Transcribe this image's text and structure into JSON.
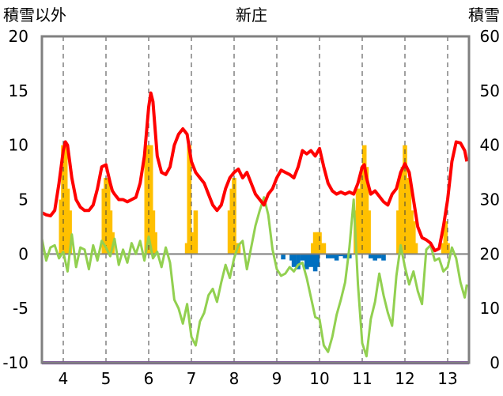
{
  "chart_data": {
    "type": "line",
    "title": "新庄",
    "ylabel_left": "積雪以外",
    "ylabel_right": "積雪",
    "ylim_left": [
      -10,
      20
    ],
    "ylim_right": [
      0,
      60
    ],
    "yticks_left": [
      "20",
      "15",
      "10",
      "5",
      "0",
      "-5",
      "-10"
    ],
    "yticks_right": [
      "60",
      "50",
      "40",
      "30",
      "20",
      "10",
      "0"
    ],
    "xticks": [
      "4",
      "5",
      "6",
      "7",
      "8",
      "9",
      "10",
      "11",
      "12",
      "13"
    ],
    "xlim": [
      3.5,
      13.5
    ],
    "grid": "vertical-dashed",
    "colors": {
      "snow_depth": "#ff0000",
      "temperature": "#92d050",
      "snowfall_positive": "#ffc000",
      "snowfall_negative": "#0070c0",
      "baseline": "#7030a0",
      "zero_line": "#808080",
      "frame": "#808080"
    },
    "series": [
      {
        "axis": "right",
        "kind": "line",
        "x": [
          3.5,
          3.6,
          3.7,
          3.8,
          3.9,
          4.0,
          4.05,
          4.1,
          4.2,
          4.3,
          4.4,
          4.5,
          4.6,
          4.7,
          4.8,
          4.9,
          5.0,
          5.1,
          5.15,
          5.2,
          5.3,
          5.4,
          5.5,
          5.6,
          5.7,
          5.8,
          5.9,
          6.0,
          6.05,
          6.1,
          6.2,
          6.3,
          6.4,
          6.5,
          6.6,
          6.7,
          6.8,
          6.9,
          7.0,
          7.1,
          7.2,
          7.3,
          7.4,
          7.5,
          7.6,
          7.7,
          7.8,
          7.9,
          8.0,
          8.1,
          8.2,
          8.3,
          8.4,
          8.5,
          8.6,
          8.7,
          8.8,
          8.9,
          9.0,
          9.1,
          9.2,
          9.3,
          9.4,
          9.5,
          9.6,
          9.7,
          9.8,
          9.9,
          10.0,
          10.1,
          10.2,
          10.3,
          10.4,
          10.5,
          10.6,
          10.7,
          10.8,
          10.9,
          11.0,
          11.05,
          11.1,
          11.2,
          11.3,
          11.4,
          11.5,
          11.6,
          11.7,
          11.8,
          11.9,
          12.0,
          12.1,
          12.2,
          12.3,
          12.4,
          12.5,
          12.6,
          12.7,
          12.8,
          12.9,
          13.0,
          13.1,
          13.2,
          13.3,
          13.4,
          13.45
        ],
        "y": [
          27.6,
          27.2,
          27.0,
          28.0,
          33.0,
          39.0,
          40.6,
          40.0,
          34.0,
          30.0,
          28.6,
          28.0,
          28.0,
          29.0,
          32.0,
          36.0,
          36.4,
          33.0,
          31.6,
          31.0,
          30.0,
          30.0,
          29.6,
          30.0,
          30.4,
          33.0,
          38.0,
          47.0,
          49.6,
          48.0,
          38.0,
          35.0,
          34.6,
          36.0,
          40.0,
          42.0,
          43.0,
          42.0,
          37.0,
          35.0,
          34.0,
          33.0,
          31.0,
          29.0,
          28.0,
          29.0,
          32.0,
          34.0,
          35.0,
          35.6,
          34.0,
          35.0,
          33.0,
          31.0,
          30.0,
          29.0,
          31.0,
          32.0,
          34.0,
          35.4,
          35.0,
          34.6,
          34.0,
          36.0,
          39.0,
          38.4,
          39.0,
          38.0,
          39.4,
          36.0,
          33.0,
          31.6,
          31.0,
          31.4,
          31.0,
          31.4,
          31.0,
          33.0,
          36.0,
          36.4,
          34.0,
          31.0,
          31.6,
          30.6,
          29.6,
          29.0,
          31.0,
          32.0,
          35.0,
          36.6,
          35.0,
          30.0,
          25.0,
          23.0,
          22.6,
          22.0,
          20.6,
          21.0,
          25.0,
          30.0,
          37.0,
          40.6,
          40.4,
          39.0,
          37.0
        ]
      },
      {
        "axis": "left",
        "kind": "line",
        "x": [
          3.5,
          3.6,
          3.7,
          3.8,
          3.9,
          4.0,
          4.1,
          4.2,
          4.3,
          4.4,
          4.5,
          4.6,
          4.7,
          4.8,
          4.9,
          5.0,
          5.1,
          5.2,
          5.3,
          5.4,
          5.5,
          5.6,
          5.7,
          5.8,
          5.9,
          6.0,
          6.1,
          6.2,
          6.3,
          6.4,
          6.5,
          6.6,
          6.7,
          6.8,
          6.9,
          7.0,
          7.1,
          7.2,
          7.3,
          7.4,
          7.5,
          7.6,
          7.7,
          7.8,
          7.9,
          8.0,
          8.1,
          8.2,
          8.3,
          8.4,
          8.5,
          8.6,
          8.7,
          8.8,
          8.9,
          9.0,
          9.1,
          9.2,
          9.3,
          9.4,
          9.5,
          9.6,
          9.7,
          9.8,
          9.9,
          10.0,
          10.1,
          10.2,
          10.3,
          10.4,
          10.5,
          10.6,
          10.7,
          10.8,
          10.9,
          11.0,
          11.1,
          11.2,
          11.3,
          11.4,
          11.5,
          11.6,
          11.7,
          11.8,
          11.9,
          12.0,
          12.1,
          12.2,
          12.3,
          12.4,
          12.5,
          12.6,
          12.7,
          12.8,
          12.9,
          13.0,
          13.1,
          13.2,
          13.3,
          13.4,
          13.45
        ],
        "y": [
          1.4,
          -0.6,
          0.6,
          0.8,
          -0.4,
          0.2,
          -1.6,
          1.8,
          -1.2,
          0.6,
          0.4,
          -1.4,
          0.8,
          -0.6,
          1.2,
          0.6,
          -0.2,
          1.4,
          -1.0,
          0.4,
          -0.8,
          1.0,
          0.0,
          1.2,
          -0.6,
          1.6,
          -0.4,
          0.2,
          -1.2,
          0.6,
          -0.8,
          -4.2,
          -5.0,
          -6.4,
          -4.6,
          -7.6,
          -8.4,
          -6.2,
          -5.4,
          -3.8,
          -3.2,
          -4.4,
          -2.6,
          -1.0,
          -2.2,
          -0.4,
          0.8,
          1.2,
          -1.4,
          0.6,
          2.6,
          4.0,
          5.2,
          3.6,
          0.4,
          -1.4,
          -2.0,
          -1.8,
          -1.2,
          -1.6,
          -1.0,
          -0.8,
          -2.2,
          -4.0,
          -5.8,
          -6.0,
          -8.4,
          -9.0,
          -7.6,
          -5.6,
          -4.2,
          -2.6,
          0.6,
          5.0,
          -2.8,
          -8.2,
          -9.4,
          -6.0,
          -4.4,
          -1.8,
          -3.8,
          -5.4,
          -6.6,
          -2.0,
          0.8,
          -1.2,
          -2.8,
          -1.6,
          -3.4,
          -4.6,
          0.4,
          0.8,
          -0.6,
          -0.4,
          -1.6,
          -1.2,
          0.6,
          -0.4,
          -2.6,
          -4.0,
          -2.8
        ]
      },
      {
        "axis": "left",
        "kind": "bar",
        "x": [
          3.95,
          4.0,
          4.05,
          4.1,
          4.15,
          4.95,
          5.0,
          5.05,
          5.1,
          5.15,
          5.95,
          6.0,
          6.05,
          6.1,
          6.15,
          6.9,
          6.95,
          7.0,
          7.05,
          7.1,
          7.9,
          7.95,
          8.0,
          8.05,
          8.1,
          9.85,
          9.9,
          9.95,
          10.0,
          10.05,
          10.1,
          10.85,
          10.9,
          10.95,
          11.0,
          11.05,
          11.1,
          11.15,
          11.85,
          11.9,
          11.95,
          12.0,
          12.05,
          12.1,
          12.15,
          12.2,
          12.25,
          12.9,
          12.95,
          13.0
        ],
        "y": [
          5.0,
          10.0,
          10.0,
          6.0,
          4.0,
          6.0,
          7.0,
          7.0,
          4.0,
          2.0,
          10.0,
          10.0,
          10.0,
          4.0,
          2.0,
          1.0,
          10.0,
          2.0,
          1.0,
          4.0,
          4.0,
          6.0,
          7.0,
          1.0,
          1.0,
          1.0,
          2.0,
          2.0,
          2.0,
          1.0,
          1.0,
          4.0,
          6.0,
          6.0,
          8.0,
          10.0,
          8.0,
          4.0,
          4.0,
          7.0,
          8.0,
          10.0,
          7.0,
          7.0,
          4.0,
          3.0,
          1.0,
          1.0,
          3.0,
          1.0
        ]
      },
      {
        "axis": "left",
        "kind": "bar",
        "x": [
          9.15,
          9.35,
          9.4,
          9.5,
          9.6,
          9.7,
          9.8,
          9.9,
          9.95,
          10.2,
          10.3,
          10.4,
          10.5,
          10.6,
          10.7,
          11.2,
          11.3,
          11.4,
          11.5
        ],
        "y": [
          -0.5,
          -0.6,
          -1.2,
          -1.4,
          -0.6,
          -1.4,
          -1.2,
          -1.6,
          -1.2,
          -0.4,
          -0.4,
          -0.6,
          -0.2,
          -0.4,
          -0.4,
          -0.4,
          -0.6,
          -0.4,
          -0.6
        ]
      }
    ]
  }
}
